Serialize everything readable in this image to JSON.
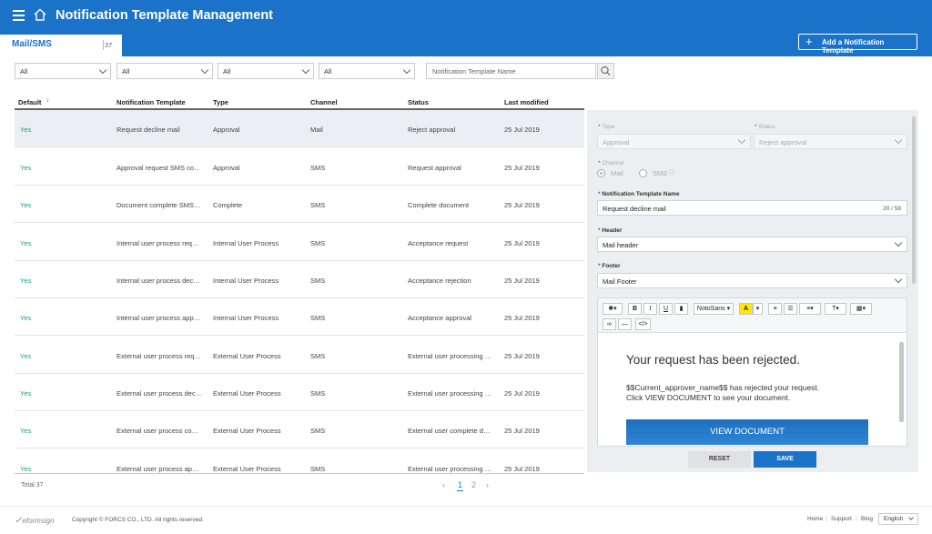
{
  "header": {
    "title": "Notification Template Management",
    "tab_label": "Mail/SMS",
    "tab_count": "37",
    "add_button": "Add a Notification Template"
  },
  "filters": {
    "f1": "All",
    "f2": "All",
    "f3": "All",
    "f4": "All",
    "search_placeholder": "Notification Template Name"
  },
  "table": {
    "headers": [
      "Default",
      "Notification Template",
      "Type",
      "Channel",
      "Status",
      "Last modified"
    ],
    "rows": [
      {
        "default": "Yes",
        "name": "Request decline mail",
        "type": "Approval",
        "channel": "Mail",
        "status": "Reject approval",
        "modified": "25 Jul 2019"
      },
      {
        "default": "Yes",
        "name": "Approval request SMS co…",
        "type": "Approval",
        "channel": "SMS",
        "status": "Request approval",
        "modified": "25 Jul 2019"
      },
      {
        "default": "Yes",
        "name": "Document complete SMS…",
        "type": "Complete",
        "channel": "SMS",
        "status": "Complete document",
        "modified": "25 Jul 2019"
      },
      {
        "default": "Yes",
        "name": "Internal user process req…",
        "type": "Internal User Process",
        "channel": "SMS",
        "status": "Acceptance request",
        "modified": "25 Jul 2019"
      },
      {
        "default": "Yes",
        "name": "Internal user process dec…",
        "type": "Internal User Process",
        "channel": "SMS",
        "status": "Acceptance rejection",
        "modified": "25 Jul 2019"
      },
      {
        "default": "Yes",
        "name": "Internal user process app…",
        "type": "Internal User Process",
        "channel": "SMS",
        "status": "Acceptance approval",
        "modified": "25 Jul 2019"
      },
      {
        "default": "Yes",
        "name": "External user process req…",
        "type": "External User Process",
        "channel": "SMS",
        "status": "External user processing …",
        "modified": "25 Jul 2019"
      },
      {
        "default": "Yes",
        "name": "External user process dec…",
        "type": "External User Process",
        "channel": "SMS",
        "status": "External user processing …",
        "modified": "25 Jul 2019"
      },
      {
        "default": "Yes",
        "name": "External user process co…",
        "type": "External User Process",
        "channel": "SMS",
        "status": "External user complete d…",
        "modified": "25 Jul 2019"
      },
      {
        "default": "Yes",
        "name": "External user process ap…",
        "type": "External User Process",
        "channel": "SMS",
        "status": "External user processing …",
        "modified": "25 Jul 2019"
      }
    ],
    "total": "Total 37",
    "pages": [
      "1",
      "2"
    ]
  },
  "detail": {
    "type_label": "Type",
    "type_value": "Approval",
    "status_label": "Status",
    "status_value": "Reject approval",
    "channel_label": "Channel",
    "channel_mail": "Mail",
    "channel_sms": "SMS",
    "name_label": "Notification Template Name",
    "name_value": "Request decline mail",
    "name_counter": "20 / 58",
    "header_label": "Header",
    "header_value": "Mail header",
    "footer_label": "Footer",
    "footer_value": "Mail Footer",
    "font_select": "NotoSans",
    "editor": {
      "heading": "Your request has been rejected.",
      "line1": "$$Current_approver_name$$ has rejected your request.",
      "line2": "Click VIEW DOCUMENT to see your document.",
      "button": "VIEW DOCUMENT"
    },
    "reset": "RESET",
    "save": "SAVE"
  },
  "footer": {
    "logo": "eformsign",
    "copyright": "Copyright © FORCS CO., LTD. All rights reserved.",
    "links": [
      "Home",
      "Support",
      "Blog"
    ],
    "language": "English"
  },
  "colors": {
    "brand": "#1a73c8",
    "yes": "#1e9b8a",
    "panel": "#eceef1"
  }
}
